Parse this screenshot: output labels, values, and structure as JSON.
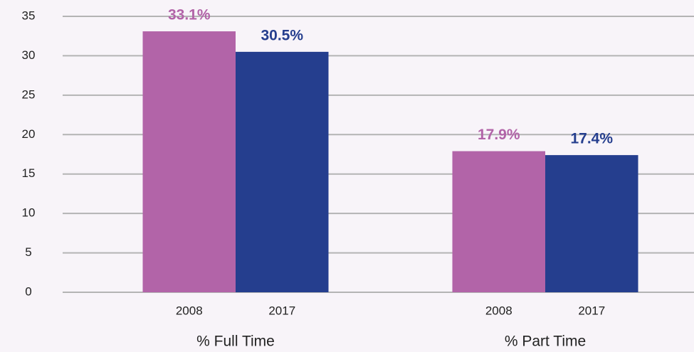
{
  "chart_data": {
    "type": "bar",
    "categories": [
      "% Full Time",
      "% Part Time"
    ],
    "series": [
      {
        "name": "2008",
        "color": "#b264a8",
        "values": [
          33.1,
          17.9
        ],
        "value_labels": [
          "33.1%",
          "17.9%"
        ]
      },
      {
        "name": "2017",
        "color": "#253e8e",
        "values": [
          30.5,
          17.4
        ],
        "value_labels": [
          "30.5%",
          "17.4%"
        ]
      }
    ],
    "ylim": [
      0,
      35
    ],
    "yticks": [
      0,
      5,
      10,
      15,
      20,
      25,
      30,
      35
    ],
    "grid": true
  }
}
